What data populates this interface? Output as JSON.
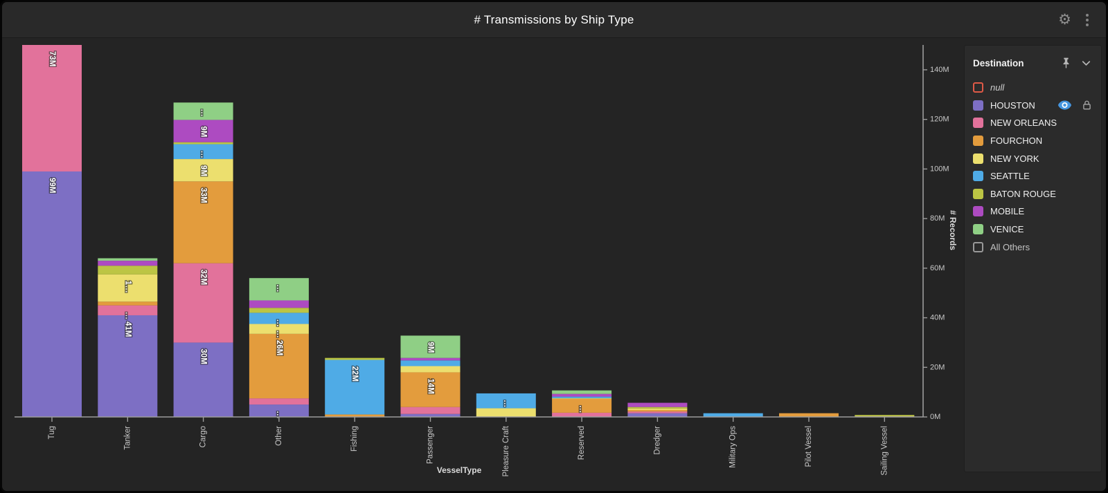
{
  "window": {
    "title": "# Transmissions by Ship Type"
  },
  "header_icons": [
    {
      "name": "gear-icon",
      "glyph": "⚙"
    },
    {
      "name": "kebab-menu-icon",
      "glyph": "⋮"
    }
  ],
  "legend": {
    "title": "Destination",
    "header_icons": [
      {
        "name": "pin-icon",
        "shape": "pushpin"
      },
      {
        "name": "chevron-down-icon",
        "shape": "chevron-down"
      }
    ],
    "items": [
      {
        "label": "null",
        "swatch": "outline",
        "color": "#e05a47",
        "italic": true
      },
      {
        "label": "HOUSTON",
        "swatch": "fill",
        "color": "#7d6fc4",
        "trailing_icons": [
          "eye-icon",
          "lock-icon"
        ]
      },
      {
        "label": "NEW ORLEANS",
        "swatch": "fill",
        "color": "#e2729b"
      },
      {
        "label": "FOURCHON",
        "swatch": "fill",
        "color": "#e39c3d"
      },
      {
        "label": "NEW YORK",
        "swatch": "fill",
        "color": "#ecdf6e"
      },
      {
        "label": "SEATTLE",
        "swatch": "fill",
        "color": "#4fabe6"
      },
      {
        "label": "BATON ROUGE",
        "swatch": "fill",
        "color": "#bcc544"
      },
      {
        "label": "MOBILE",
        "swatch": "fill",
        "color": "#ad4bc1"
      },
      {
        "label": "VENICE",
        "swatch": "fill",
        "color": "#8fcf85"
      },
      {
        "label": "All Others",
        "swatch": "outline",
        "color": "#999999",
        "muted": true
      }
    ],
    "eye_icon_color": "#4596e0",
    "lock_icon_color": "#a8a8a8"
  },
  "chart_data": {
    "type": "bar",
    "stacked": true,
    "title": "# Transmissions by Ship Type",
    "xlabel": "VesselType",
    "ylabel": "# Records",
    "units": "M",
    "grid": false,
    "legend_position": "right",
    "y_axis_side": "right",
    "ylim": [
      0,
      150
    ],
    "yticks": [
      "0M",
      "20M",
      "40M",
      "60M",
      "80M",
      "100M",
      "120M",
      "140M"
    ],
    "categories": [
      "Tug",
      "Tanker",
      "Cargo",
      "Other",
      "Fishing",
      "Passenger",
      "Pleasure Craft",
      "Reserved",
      "Dredger",
      "Military Ops",
      "Pilot Vessel",
      "Sailing Vessel"
    ],
    "series": [
      {
        "name": "HOUSTON",
        "color": "#7d6fc4",
        "values": [
          99,
          41,
          30,
          5,
          0,
          1.2,
          0,
          0,
          1.5,
          0,
          0,
          0
        ],
        "labels": [
          "99M",
          "41M",
          "30M",
          "…",
          "",
          "",
          "",
          "",
          "",
          "",
          "",
          ""
        ]
      },
      {
        "name": "NEW ORLEANS",
        "color": "#e2729b",
        "values": [
          73,
          4,
          32,
          2.5,
          0,
          2.8,
          0,
          1.7,
          0.7,
          0,
          0,
          0
        ],
        "labels": [
          "73M",
          "…",
          "32M",
          "",
          "",
          "",
          "",
          "",
          "",
          "",
          "",
          ""
        ]
      },
      {
        "name": "FOURCHON",
        "color": "#e39c3d",
        "values": [
          0,
          1.5,
          33,
          26,
          1,
          14,
          0,
          5.6,
          0.6,
          0,
          1.5,
          0
        ],
        "labels": [
          "",
          "",
          "33M",
          "26M",
          "",
          "14M",
          "",
          "…",
          "",
          "",
          "",
          ""
        ]
      },
      {
        "name": "NEW YORK",
        "color": "#ecdf6e",
        "values": [
          0,
          11,
          9,
          4,
          0,
          2.5,
          3.5,
          0.3,
          0.6,
          0,
          0,
          0.3
        ],
        "labels": [
          "",
          "1…",
          "9M",
          "…",
          "",
          "",
          "",
          "",
          "",
          "",
          "",
          ""
        ]
      },
      {
        "name": "SEATTLE",
        "color": "#4fabe6",
        "values": [
          0,
          0,
          6,
          4.5,
          22,
          2.3,
          6,
          0.6,
          0,
          1.5,
          0,
          0
        ],
        "labels": [
          "",
          "",
          "…",
          "…",
          "22M",
          "",
          "…",
          "",
          "",
          "",
          "",
          ""
        ]
      },
      {
        "name": "BATON ROUGE",
        "color": "#bcc544",
        "values": [
          0,
          3.5,
          0.8,
          2,
          0.8,
          0,
          0,
          0,
          0.6,
          0,
          0,
          0.5
        ],
        "labels": [
          "",
          "",
          "",
          "",
          "",
          "",
          "",
          "",
          "",
          "",
          "",
          ""
        ]
      },
      {
        "name": "MOBILE",
        "color": "#ad4bc1",
        "values": [
          0,
          2,
          9,
          3,
          0,
          1,
          0,
          1.1,
          1.7,
          0,
          0,
          0
        ],
        "labels": [
          "",
          "",
          "9M",
          "",
          "",
          "",
          "",
          "",
          "",
          "",
          "",
          ""
        ]
      },
      {
        "name": "VENICE",
        "color": "#8fcf85",
        "values": [
          0,
          1,
          7,
          9,
          0,
          9,
          0,
          1.4,
          0,
          0,
          0,
          0
        ],
        "labels": [
          "",
          "",
          "…",
          "…",
          "",
          "9M",
          "",
          "",
          "",
          "",
          "",
          ""
        ]
      }
    ]
  }
}
